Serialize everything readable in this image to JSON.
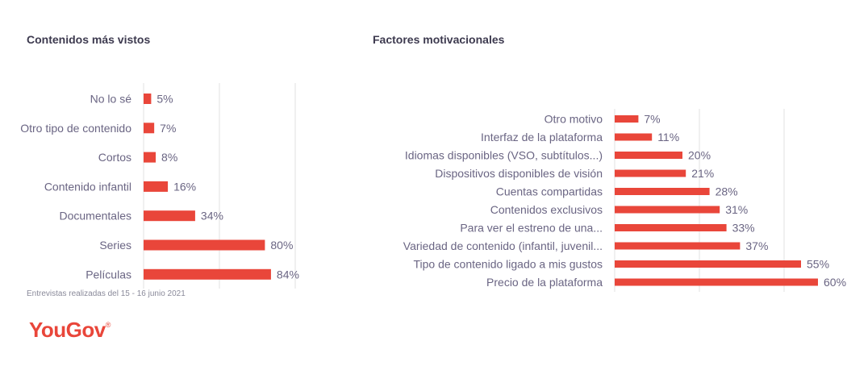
{
  "chart_data": [
    {
      "type": "bar",
      "orientation": "horizontal",
      "title": "Contenidos más vistos",
      "categories": [
        "No lo sé",
        "Otro tipo de contenido",
        "Cortos",
        "Contenido infantil",
        "Documentales",
        "Series",
        "Películas"
      ],
      "values": [
        5,
        7,
        8,
        16,
        34,
        80,
        84
      ],
      "value_labels": [
        "5%",
        "7%",
        "8%",
        "16%",
        "34%",
        "80%",
        "84%"
      ],
      "xlim": [
        0,
        200
      ],
      "grid": true,
      "bar_color": "#e9463a"
    },
    {
      "type": "bar",
      "orientation": "horizontal",
      "title": "Factores motivacionales",
      "categories": [
        "Otro motivo",
        "Interfaz de la plataforma",
        "Idiomas disponibles (VSO, subtítulos...)",
        "Dispositivos disponibles de visión",
        "Cuentas compartidas",
        "Contenidos exclusivos",
        "Para ver el estreno de una...",
        "Variedad de contenido (infantil, juvenil...",
        "Tipo de contenido ligado a mis gustos",
        "Precio de la plataforma"
      ],
      "values": [
        7,
        11,
        20,
        21,
        28,
        31,
        33,
        37,
        55,
        60
      ],
      "value_labels": [
        "7%",
        "11%",
        "20%",
        "21%",
        "28%",
        "31%",
        "33%",
        "37%",
        "55%",
        "60%"
      ],
      "xlim": [
        0,
        100
      ],
      "grid": true,
      "bar_color": "#e9463a"
    }
  ],
  "footnote": "Entrevistas realizadas del 15 - 16 junio 2021",
  "brand": {
    "logo_text": "YouGov",
    "logo_mark": "®",
    "color": "#e9463a"
  }
}
